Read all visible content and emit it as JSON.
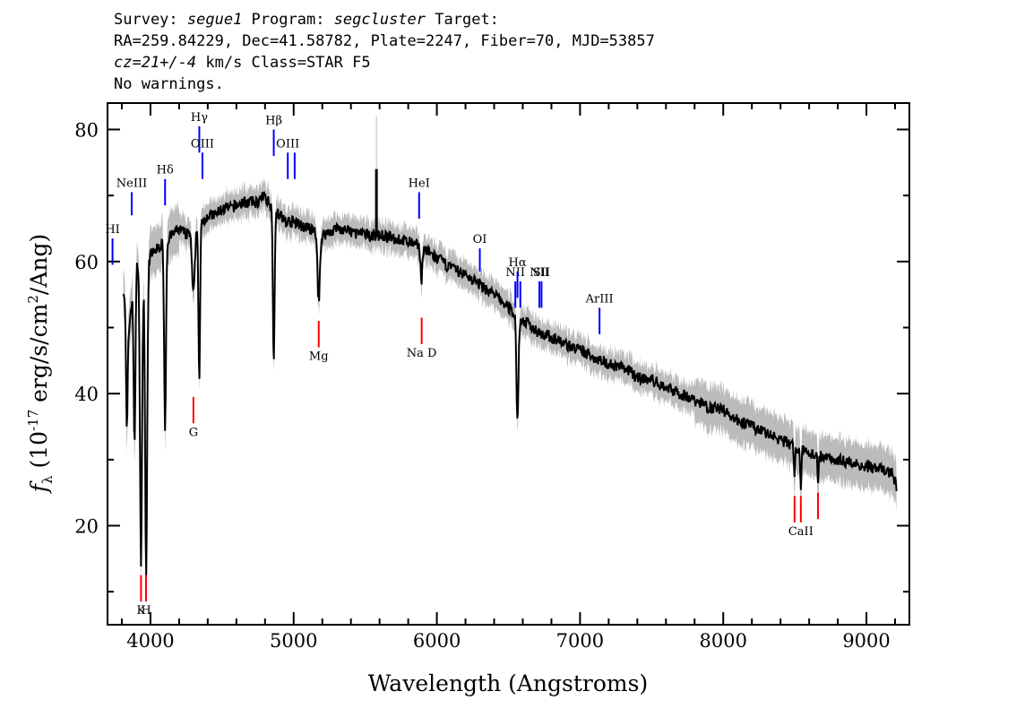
{
  "header": {
    "line1": {
      "p1": "Survey: ",
      "survey": "segue1",
      "p2": " Program: ",
      "program": "segcluster",
      "p3": " Target:"
    },
    "line2": "RA=259.84229, Dec=41.58782, Plate=2247, Fiber=70, MJD=53857",
    "line3": {
      "cz": "cz=21+/-4",
      "rest": " km/s Class=STAR F5"
    },
    "line4": "No warnings."
  },
  "chart_data": {
    "type": "line",
    "xlabel": "Wavelength (Angstroms)",
    "ylabel": "f_λ (10^-17 erg/s/cm^2/Ang)",
    "ylabel_parts": {
      "sym": "f",
      "sub": "λ",
      "pre": " (10",
      "sup1": "-17",
      "mid": " erg/s/cm",
      "sup2": "2",
      "post": "/Ang)"
    },
    "xlim": [
      3700,
      9300
    ],
    "ylim": [
      5,
      84
    ],
    "xticks": [
      4000,
      5000,
      6000,
      7000,
      8000,
      9000
    ],
    "yticks": [
      20,
      40,
      60,
      80
    ],
    "grid": false,
    "colors": {
      "spectrum": "#000000",
      "error_band": "#bbbbbb",
      "emission": "#0000ff",
      "absorption": "#ff0000"
    },
    "continuum": [
      [
        3810,
        56
      ],
      [
        3850,
        50
      ],
      [
        3900,
        60
      ],
      [
        3950,
        58
      ],
      [
        4000,
        61
      ],
      [
        4050,
        62
      ],
      [
        4100,
        63
      ],
      [
        4150,
        64
      ],
      [
        4200,
        65
      ],
      [
        4250,
        64
      ],
      [
        4300,
        65
      ],
      [
        4350,
        66
      ],
      [
        4400,
        67
      ],
      [
        4450,
        67
      ],
      [
        4500,
        68
      ],
      [
        4550,
        68
      ],
      [
        4600,
        68.5
      ],
      [
        4650,
        69
      ],
      [
        4700,
        69
      ],
      [
        4750,
        69
      ],
      [
        4800,
        70
      ],
      [
        4850,
        68
      ],
      [
        4900,
        67
      ],
      [
        4950,
        66
      ],
      [
        5000,
        66
      ],
      [
        5100,
        65
      ],
      [
        5200,
        64
      ],
      [
        5300,
        65
      ],
      [
        5400,
        64.5
      ],
      [
        5500,
        64
      ],
      [
        5600,
        64
      ],
      [
        5700,
        63.5
      ],
      [
        5800,
        63
      ],
      [
        5900,
        62
      ],
      [
        6000,
        60.5
      ],
      [
        6100,
        59
      ],
      [
        6200,
        58
      ],
      [
        6300,
        56.5
      ],
      [
        6400,
        55
      ],
      [
        6500,
        53
      ],
      [
        6600,
        51
      ],
      [
        6700,
        49.5
      ],
      [
        6800,
        48.5
      ],
      [
        6900,
        47.5
      ],
      [
        7000,
        46.5
      ],
      [
        7100,
        45.5
      ],
      [
        7200,
        44.5
      ],
      [
        7300,
        44
      ],
      [
        7400,
        42.5
      ],
      [
        7500,
        42
      ],
      [
        7600,
        41
      ],
      [
        7700,
        40
      ],
      [
        7800,
        39
      ],
      [
        7900,
        38
      ],
      [
        8000,
        37.5
      ],
      [
        8100,
        36
      ],
      [
        8200,
        35
      ],
      [
        8300,
        34
      ],
      [
        8400,
        33
      ],
      [
        8500,
        32
      ],
      [
        8600,
        31
      ],
      [
        8700,
        30.5
      ],
      [
        8800,
        30
      ],
      [
        8900,
        29.5
      ],
      [
        9000,
        29
      ],
      [
        9100,
        28.5
      ],
      [
        9180,
        28
      ],
      [
        9210,
        26
      ]
    ],
    "absorption_features": [
      {
        "wave": 3835,
        "depth": 18,
        "width": 8
      },
      {
        "wave": 3889,
        "depth": 25,
        "width": 9
      },
      {
        "wave": 3934,
        "depth": 45,
        "width": 10
      },
      {
        "wave": 3970,
        "depth": 47,
        "width": 10
      },
      {
        "wave": 4102,
        "depth": 28,
        "width": 9
      },
      {
        "wave": 4300,
        "depth": 10,
        "width": 14
      },
      {
        "wave": 4341,
        "depth": 24,
        "width": 8
      },
      {
        "wave": 4861,
        "depth": 23,
        "width": 8
      },
      {
        "wave": 5175,
        "depth": 10,
        "width": 12
      },
      {
        "wave": 5892,
        "depth": 5,
        "width": 8
      },
      {
        "wave": 6563,
        "depth": 16,
        "width": 10
      },
      {
        "wave": 8498,
        "depth": 4,
        "width": 6
      },
      {
        "wave": 8542,
        "depth": 6,
        "width": 6
      },
      {
        "wave": 8662,
        "depth": 5,
        "width": 6
      }
    ],
    "spikes": [
      {
        "wave": 5578,
        "height": 74
      }
    ],
    "emission_lines": [
      {
        "label": "HI",
        "wave": 3735,
        "y_low": 59.5,
        "y_high": 63.5
      },
      {
        "label": "NeIII",
        "wave": 3869,
        "y_low": 67,
        "y_high": 70.5
      },
      {
        "label": "Hδ",
        "wave": 4102,
        "y_low": 68.5,
        "y_high": 72.5
      },
      {
        "label": "Hγ",
        "wave": 4341,
        "y_low": 76.5,
        "y_high": 80.5
      },
      {
        "label": "OIII",
        "wave": 4363,
        "y_low": 72.5,
        "y_high": 76.5
      },
      {
        "label": "Hβ",
        "wave": 4861,
        "y_low": 76,
        "y_high": 80
      },
      {
        "label": "OIII",
        "wave": 4959,
        "y_low": 72.5,
        "y_high": 76.5
      },
      {
        "label": "",
        "wave": 5007,
        "y_low": 72.5,
        "y_high": 76.5
      },
      {
        "label": "HeI",
        "wave": 5876,
        "y_low": 66.5,
        "y_high": 70.5
      },
      {
        "label": "OI",
        "wave": 6300,
        "y_low": 58.5,
        "y_high": 62
      },
      {
        "label": "NII",
        "wave": 6548,
        "y_low": 53,
        "y_high": 57
      },
      {
        "label": "Hα",
        "wave": 6563,
        "y_low": 54.5,
        "y_high": 58.5
      },
      {
        "label": "",
        "wave": 6583,
        "y_low": 53,
        "y_high": 57
      },
      {
        "label": "NII",
        "wave": 6716,
        "y_low": 53,
        "y_high": 57
      },
      {
        "label": "SII",
        "wave": 6731,
        "y_low": 53,
        "y_high": 57
      },
      {
        "label": "ArIII",
        "wave": 7136,
        "y_low": 49,
        "y_high": 53
      }
    ],
    "absorption_lines": [
      {
        "label": "K",
        "wave": 3934,
        "y_low": 8.5,
        "y_high": 12.5
      },
      {
        "label": "H",
        "wave": 3969,
        "y_low": 8.5,
        "y_high": 12.5
      },
      {
        "label": "G",
        "wave": 4300,
        "y_low": 35.5,
        "y_high": 39.5
      },
      {
        "label": "Mg",
        "wave": 5175,
        "y_low": 47,
        "y_high": 51
      },
      {
        "label": "Na D",
        "wave": 5894,
        "y_low": 47.5,
        "y_high": 51.5
      },
      {
        "label": "",
        "wave": 8498,
        "y_low": 20.5,
        "y_high": 24.5
      },
      {
        "label": "CaII",
        "wave": 8542,
        "y_low": 20.5,
        "y_high": 24.5
      },
      {
        "label": "",
        "wave": 8662,
        "y_low": 21,
        "y_high": 25
      }
    ]
  }
}
